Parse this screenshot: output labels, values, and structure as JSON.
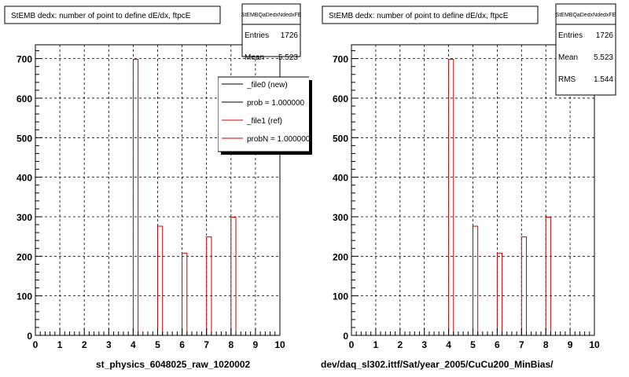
{
  "chart_data": [
    {
      "type": "bar",
      "title": "StEMB dedx: number of point to define dE/dx, ftpcE",
      "xlabel": "st_physics_6048025_raw_1020002",
      "ylabel": "",
      "xlim": [
        0,
        10
      ],
      "ylim": [
        0,
        735
      ],
      "x_ticks": [
        0,
        1,
        2,
        3,
        4,
        5,
        6,
        7,
        8,
        9,
        10
      ],
      "y_ticks": [
        0,
        100,
        200,
        300,
        400,
        500,
        600,
        700
      ],
      "grid": true,
      "stats": {
        "name": "StEMBQaDedxNdedxFE",
        "rows": [
          {
            "label": "Entries",
            "value": "1726"
          },
          {
            "label": "Mean",
            "value": "5.523"
          }
        ]
      },
      "legend": {
        "placement": "top-right",
        "entries": [
          {
            "label": "_file0 (new)",
            "color": "#000000"
          },
          {
            "label": "prob = 1.000000",
            "color": "#000000"
          },
          {
            "label": "_file1 (ref)",
            "color": "#cc0000"
          },
          {
            "label": "probN = 1.000000",
            "color": "#cc0000"
          }
        ]
      },
      "series": [
        {
          "color": "#cc0000",
          "bins": [
            {
              "x0": 4.0,
              "x1": 4.2,
              "y": 698
            },
            {
              "x0": 5.0,
              "x1": 5.2,
              "y": 276
            },
            {
              "x0": 6.0,
              "x1": 6.2,
              "y": 208
            },
            {
              "x0": 7.0,
              "x1": 7.2,
              "y": 249
            },
            {
              "x0": 8.0,
              "x1": 8.2,
              "y": 299
            }
          ]
        }
      ]
    },
    {
      "type": "bar",
      "title": "StEMB dedx: number of point to define dE/dx, ftpcE",
      "xlabel": "dev/daq_sl302.ittf/Sat/year_2005/CuCu200_MinBias/",
      "ylabel": "",
      "xlim": [
        0,
        10
      ],
      "ylim": [
        0,
        735
      ],
      "x_ticks": [
        0,
        1,
        2,
        3,
        4,
        5,
        6,
        7,
        8,
        9,
        10
      ],
      "y_ticks": [
        0,
        100,
        200,
        300,
        400,
        500,
        600,
        700
      ],
      "grid": true,
      "stats": {
        "name": "StEMBQaDedxNdedxFE",
        "rows": [
          {
            "label": "Entries",
            "value": "1726"
          },
          {
            "label": "Mean",
            "value": "5.523"
          },
          {
            "label": "RMS",
            "value": "1.544"
          }
        ]
      },
      "series": [
        {
          "color": "#cc0000",
          "bins": [
            {
              "x0": 4.0,
              "x1": 4.2,
              "y": 698
            },
            {
              "x0": 5.0,
              "x1": 5.2,
              "y": 276
            },
            {
              "x0": 6.0,
              "x1": 6.2,
              "y": 208
            },
            {
              "x0": 7.0,
              "x1": 7.2,
              "y": 249
            },
            {
              "x0": 8.0,
              "x1": 8.2,
              "y": 299
            }
          ]
        }
      ]
    }
  ]
}
